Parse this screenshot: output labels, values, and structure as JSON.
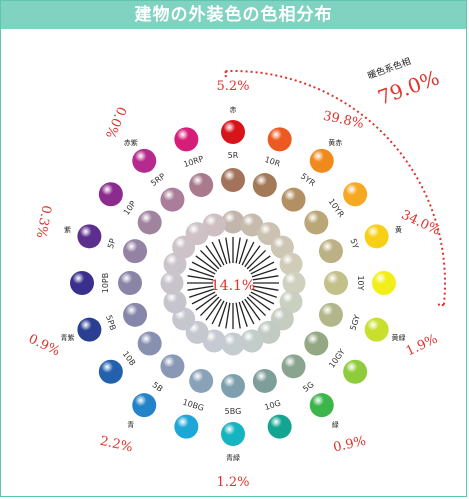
{
  "title": "建物の外装色の色相分布",
  "center_pct": "14.1%",
  "warm": {
    "label": "暖色系色相",
    "value": "79.0%",
    "color": "#e0322b"
  },
  "outer_pcts": [
    {
      "text": "5.2%",
      "angle": 0
    },
    {
      "text": "39.8%",
      "angle": 34
    },
    {
      "text": "34.0%",
      "angle": 72
    },
    {
      "text": "1.9%",
      "angle": 108
    },
    {
      "text": "0.9%",
      "angle": 144
    },
    {
      "text": "1.2%",
      "angle": 180
    },
    {
      "text": "2.2%",
      "angle": 216
    },
    {
      "text": "0.9%",
      "angle": 252
    },
    {
      "text": "0.3%",
      "angle": 288
    },
    {
      "text": "0.0%",
      "angle": 324
    }
  ],
  "color_names": [
    {
      "text": "赤",
      "angle": 0
    },
    {
      "text": "黄赤",
      "angle": 36
    },
    {
      "text": "黄",
      "angle": 72
    },
    {
      "text": "黄緑",
      "angle": 108
    },
    {
      "text": "緑",
      "angle": 144
    },
    {
      "text": "青緑",
      "angle": 180
    },
    {
      "text": "青",
      "angle": 216
    },
    {
      "text": "青紫",
      "angle": 252
    },
    {
      "text": "紫",
      "angle": 288
    },
    {
      "text": "赤紫",
      "angle": 324
    }
  ],
  "hues": [
    "5R",
    "10R",
    "5YR",
    "10YR",
    "5Y",
    "10Y",
    "5GY",
    "10GY",
    "5G",
    "10G",
    "5BG",
    "10BG",
    "5B",
    "10B",
    "5PB",
    "10PB",
    "5P",
    "10P",
    "5RP",
    "10RP"
  ],
  "colors": {
    "outer": [
      "#d8141b",
      "#ec5a22",
      "#f08a1c",
      "#f5a820",
      "#f7cf15",
      "#f2ee1a",
      "#c8df2d",
      "#8fcc3c",
      "#3cb54a",
      "#14a592",
      "#14b4c0",
      "#1ea6d8",
      "#2283c8",
      "#2461ad",
      "#2a3e92",
      "#3a2f8c",
      "#5c2f8e",
      "#8c2b8d",
      "#b52a8c",
      "#d61d78"
    ],
    "middle": [
      "#a2725a",
      "#a27a58",
      "#b39064",
      "#bba678",
      "#bcb184",
      "#c4c08a",
      "#b2b68a",
      "#94a884",
      "#8aa490",
      "#7e9e9a",
      "#7ea0ae",
      "#8aa2b8",
      "#8a98b6",
      "#8890b0",
      "#8686aa",
      "#8a84a6",
      "#9482a4",
      "#a0849e",
      "#aa7e9a",
      "#a87a8c"
    ],
    "inner": [
      "#c2b6ac",
      "#c6bcae",
      "#ccc2b2",
      "#cec6b4",
      "#d0ccb8",
      "#d0d0be",
      "#cad0c0",
      "#c6ccc2",
      "#c2cac4",
      "#c2ccca",
      "#c4ccd0",
      "#c6cad2",
      "#c6c8d0",
      "#c6c6ce",
      "#c6c4cc",
      "#c8c4cc",
      "#ccc4cc",
      "#ccc2c8",
      "#cec2c6",
      "#cec0c2"
    ]
  }
}
